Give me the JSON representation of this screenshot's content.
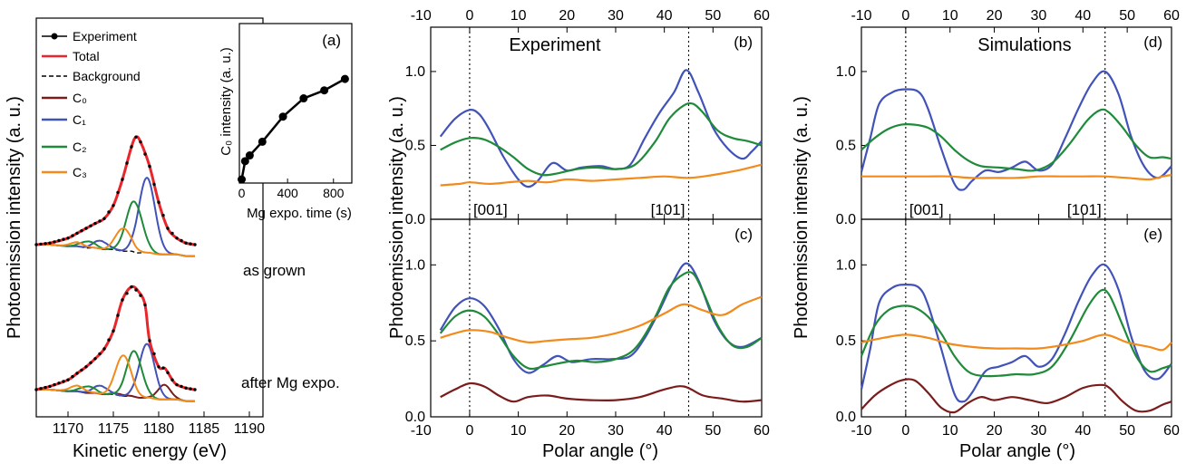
{
  "colors": {
    "experiment": "#000000",
    "total": "#e8262b",
    "background": "#000000",
    "C0": "#7b1c1c",
    "C1": "#4152b8",
    "C2": "#1f8a3a",
    "C3": "#f28a1c"
  },
  "chart_data": [
    {
      "type": "line",
      "panel": "xps",
      "xlabel": "Kinetic energy (eV)",
      "ylabel": "Photoemission intensity (a. u.)",
      "xlim": [
        1166.5,
        1191.5
      ],
      "x_ticks": [
        "1170",
        "1175",
        "1180",
        "1185",
        "1190"
      ],
      "legend": {
        "position": "top-left",
        "entries": [
          "Experiment",
          "Total",
          "Background",
          "C₀",
          "C₁",
          "C₂",
          "C₃"
        ]
      },
      "annotations": [
        "as grown",
        "after Mg expo."
      ],
      "spectra": [
        {
          "name": "as grown",
          "x": [
            1166.5,
            1168,
            1170,
            1171,
            1172,
            1173,
            1174,
            1175,
            1176,
            1177,
            1177.5,
            1178,
            1179,
            1180,
            1181,
            1182,
            1183,
            1184
          ],
          "experiment": [
            0.0,
            0.01,
            0.04,
            0.07,
            0.1,
            0.13,
            0.16,
            0.24,
            0.4,
            0.6,
            0.66,
            0.63,
            0.48,
            0.26,
            0.1,
            0.04,
            0.01,
            0.0
          ],
          "background": [
            0.0,
            0.0,
            -0.01,
            -0.01,
            -0.02,
            -0.02,
            -0.03,
            -0.03,
            -0.04,
            -0.04,
            -0.05,
            -0.05,
            -0.05,
            -0.06,
            -0.06,
            -0.06,
            -0.07,
            -0.07
          ],
          "components": [
            {
              "name": "C1",
              "center": 1178.7,
              "width": 0.9,
              "height": 0.46,
              "satellite": {
                "center": 1173.6,
                "width": 0.8,
                "height": 0.05
              }
            },
            {
              "name": "C2",
              "center": 1177.3,
              "width": 0.9,
              "height": 0.31,
              "satellite": {
                "center": 1172.2,
                "width": 0.8,
                "height": 0.04
              }
            },
            {
              "name": "C3",
              "center": 1176.1,
              "width": 0.85,
              "height": 0.14,
              "satellite": {
                "center": 1171.0,
                "width": 0.8,
                "height": 0.025
              }
            }
          ]
        },
        {
          "name": "after Mg expo.",
          "x": [
            1166.5,
            1168,
            1170,
            1171,
            1172,
            1173,
            1174,
            1175,
            1176,
            1177,
            1177.8,
            1178.5,
            1179,
            1180,
            1180.7,
            1181.5,
            1182,
            1183,
            1184
          ],
          "experiment": [
            0.0,
            0.02,
            0.06,
            0.1,
            0.14,
            0.19,
            0.25,
            0.36,
            0.55,
            0.63,
            0.6,
            0.52,
            0.3,
            0.14,
            0.13,
            0.06,
            0.03,
            0.01,
            0.0
          ],
          "background": [
            0.0,
            0.0,
            -0.01,
            -0.01,
            -0.02,
            -0.02,
            -0.03,
            -0.03,
            -0.04,
            -0.04,
            -0.05,
            -0.05,
            -0.05,
            -0.06,
            -0.06,
            -0.06,
            -0.06,
            -0.07,
            -0.07
          ],
          "components": [
            {
              "name": "C0",
              "center": 1180.6,
              "width": 0.7,
              "height": 0.09,
              "satellite": {
                "center": 1175.5,
                "width": 0.8,
                "height": 0.01
              }
            },
            {
              "name": "C1",
              "center": 1178.7,
              "width": 0.85,
              "height": 0.33,
              "satellite": {
                "center": 1173.6,
                "width": 0.8,
                "height": 0.05
              }
            },
            {
              "name": "C2",
              "center": 1177.3,
              "width": 0.85,
              "height": 0.28,
              "satellite": {
                "center": 1172.2,
                "width": 0.8,
                "height": 0.04
              }
            },
            {
              "name": "C3",
              "center": 1176.1,
              "width": 0.85,
              "height": 0.25,
              "satellite": {
                "center": 1171.0,
                "width": 0.8,
                "height": 0.035
              }
            }
          ]
        }
      ]
    },
    {
      "type": "line",
      "panel": "(a)",
      "xlabel": "Mg expo. time (s)",
      "ylabel": "C₀ intensity (a. u.)",
      "xlim": [
        -20,
        960
      ],
      "x_ticks": [
        "0",
        "400",
        "800"
      ],
      "x": [
        0,
        30,
        70,
        180,
        360,
        540,
        720,
        900
      ],
      "y": [
        0.0,
        0.16,
        0.21,
        0.33,
        0.55,
        0.71,
        0.78,
        0.88
      ]
    },
    {
      "type": "line",
      "panel": "(b)",
      "title": "Experiment",
      "xlim": [
        -8,
        60
      ],
      "ylim": [
        0,
        1.3
      ],
      "ylabel": "Photoemission intensity (a. u.)",
      "top_ticks": [
        "-10",
        "0",
        "10",
        "20",
        "30",
        "40",
        "50",
        "60"
      ],
      "y_ticks": [
        "0.0",
        "0.5",
        "1.0"
      ],
      "annotations": [
        "[001]",
        "[101]"
      ],
      "vlines": [
        0,
        45
      ],
      "series": [
        {
          "name": "C1",
          "x": [
            -6,
            -3,
            0,
            2,
            4,
            7,
            10,
            12,
            14,
            17,
            20,
            23,
            27,
            30,
            33,
            36,
            39,
            42,
            44.5,
            47,
            50,
            53,
            56,
            58,
            60
          ],
          "y": [
            0.56,
            0.68,
            0.74,
            0.71,
            0.61,
            0.42,
            0.27,
            0.22,
            0.26,
            0.38,
            0.33,
            0.35,
            0.36,
            0.34,
            0.37,
            0.55,
            0.72,
            0.86,
            1.01,
            0.86,
            0.62,
            0.48,
            0.41,
            0.46,
            0.53
          ]
        },
        {
          "name": "C2",
          "x": [
            -6,
            -3,
            0,
            3,
            6,
            9,
            12,
            15,
            18,
            22,
            26,
            30,
            34,
            38,
            41,
            44,
            46,
            48,
            51,
            54,
            57,
            60
          ],
          "y": [
            0.47,
            0.52,
            0.55,
            0.54,
            0.49,
            0.42,
            0.34,
            0.3,
            0.31,
            0.34,
            0.35,
            0.34,
            0.37,
            0.52,
            0.68,
            0.77,
            0.78,
            0.72,
            0.6,
            0.55,
            0.53,
            0.5
          ]
        },
        {
          "name": "C3",
          "x": [
            -6,
            -2,
            0,
            4,
            8,
            12,
            16,
            20,
            25,
            30,
            35,
            40,
            45,
            50,
            55,
            60
          ],
          "y": [
            0.23,
            0.24,
            0.25,
            0.24,
            0.25,
            0.26,
            0.25,
            0.27,
            0.26,
            0.27,
            0.28,
            0.29,
            0.28,
            0.3,
            0.33,
            0.37
          ]
        }
      ]
    },
    {
      "type": "line",
      "panel": "(c)",
      "xlim": [
        -8,
        60
      ],
      "ylim": [
        0,
        1.3
      ],
      "xlabel": "Polar angle (°)",
      "x_ticks": [
        "-10",
        "0",
        "10",
        "20",
        "30",
        "40",
        "50",
        "60"
      ],
      "y_ticks": [
        "0.0",
        "0.5",
        "1.0"
      ],
      "vlines": [
        0,
        45
      ],
      "series": [
        {
          "name": "C1",
          "x": [
            -6,
            -3,
            0,
            3,
            6,
            9,
            12,
            15,
            18,
            21,
            25,
            29,
            33,
            36,
            39,
            42,
            44.5,
            47,
            50,
            53,
            56,
            60
          ],
          "y": [
            0.57,
            0.72,
            0.78,
            0.73,
            0.58,
            0.38,
            0.29,
            0.34,
            0.4,
            0.36,
            0.38,
            0.38,
            0.4,
            0.52,
            0.7,
            0.9,
            1.01,
            0.9,
            0.65,
            0.5,
            0.46,
            0.52
          ]
        },
        {
          "name": "C2",
          "x": [
            -6,
            -3,
            0,
            3,
            6,
            9,
            12,
            15,
            18,
            22,
            26,
            30,
            34,
            38,
            41,
            44,
            46,
            48,
            51,
            54,
            57,
            60
          ],
          "y": [
            0.55,
            0.66,
            0.7,
            0.66,
            0.54,
            0.4,
            0.32,
            0.33,
            0.35,
            0.37,
            0.36,
            0.38,
            0.45,
            0.65,
            0.85,
            0.94,
            0.94,
            0.82,
            0.6,
            0.47,
            0.46,
            0.52
          ]
        },
        {
          "name": "C3",
          "x": [
            -6,
            -3,
            0,
            4,
            8,
            12,
            16,
            20,
            25,
            30,
            35,
            40,
            44,
            48,
            52,
            56,
            60
          ],
          "y": [
            0.52,
            0.55,
            0.57,
            0.56,
            0.52,
            0.49,
            0.5,
            0.51,
            0.52,
            0.55,
            0.6,
            0.68,
            0.74,
            0.7,
            0.67,
            0.74,
            0.79
          ]
        },
        {
          "name": "C0",
          "x": [
            -6,
            -3,
            0,
            3,
            6,
            9,
            12,
            16,
            20,
            25,
            30,
            35,
            40,
            44,
            48,
            52,
            56,
            60
          ],
          "y": [
            0.13,
            0.18,
            0.22,
            0.2,
            0.14,
            0.1,
            0.13,
            0.14,
            0.12,
            0.11,
            0.11,
            0.13,
            0.18,
            0.2,
            0.14,
            0.12,
            0.1,
            0.11
          ]
        }
      ]
    },
    {
      "type": "line",
      "panel": "(d)",
      "title": "Simulations",
      "xlim": [
        -10,
        60
      ],
      "ylim": [
        0,
        1.3
      ],
      "ylabel": "Photoemission intensity (a. u.)",
      "top_ticks": [
        "-10",
        "0",
        "10",
        "20",
        "30",
        "40",
        "50",
        "60"
      ],
      "y_ticks": [
        "0.0",
        "0.5",
        "1.0"
      ],
      "annotations": [
        "[001]",
        "[101]"
      ],
      "vlines": [
        0,
        45
      ],
      "series": [
        {
          "name": "C1",
          "x": [
            -10,
            -8,
            -6,
            -3,
            0,
            3,
            5,
            8,
            11,
            13,
            15,
            18,
            21,
            24,
            27,
            30,
            33,
            36,
            39,
            42,
            45,
            48,
            51,
            54,
            57,
            60
          ],
          "y": [
            0.32,
            0.55,
            0.78,
            0.86,
            0.88,
            0.86,
            0.75,
            0.48,
            0.24,
            0.2,
            0.26,
            0.33,
            0.32,
            0.35,
            0.39,
            0.33,
            0.37,
            0.55,
            0.75,
            0.92,
            1.0,
            0.85,
            0.55,
            0.35,
            0.28,
            0.36
          ]
        },
        {
          "name": "C2",
          "x": [
            -10,
            -7,
            -4,
            -1,
            2,
            5,
            8,
            11,
            14,
            17,
            21,
            25,
            29,
            33,
            37,
            41,
            44,
            46,
            49,
            52,
            55,
            58,
            60
          ],
          "y": [
            0.47,
            0.55,
            0.61,
            0.64,
            0.64,
            0.62,
            0.56,
            0.47,
            0.4,
            0.36,
            0.35,
            0.34,
            0.33,
            0.38,
            0.51,
            0.67,
            0.74,
            0.72,
            0.62,
            0.5,
            0.42,
            0.42,
            0.41
          ]
        },
        {
          "name": "C3",
          "x": [
            -10,
            -5,
            0,
            5,
            10,
            15,
            20,
            25,
            30,
            35,
            40,
            45,
            50,
            55,
            58,
            60
          ],
          "y": [
            0.29,
            0.29,
            0.29,
            0.29,
            0.29,
            0.28,
            0.28,
            0.28,
            0.29,
            0.29,
            0.29,
            0.29,
            0.28,
            0.27,
            0.29,
            0.3
          ]
        }
      ]
    },
    {
      "type": "line",
      "panel": "(e)",
      "xlim": [
        -10,
        60
      ],
      "ylim": [
        0,
        1.3
      ],
      "xlabel": "Polar angle (°)",
      "x_ticks": [
        "-10",
        "0",
        "10",
        "20",
        "30",
        "40",
        "50",
        "60"
      ],
      "y_ticks": [
        "0.0",
        "0.5",
        "1.0"
      ],
      "vlines": [
        0,
        45
      ],
      "series": [
        {
          "name": "C1",
          "x": [
            -10,
            -8,
            -6,
            -3,
            0,
            3,
            5,
            8,
            11,
            13,
            15,
            18,
            21,
            24,
            27,
            30,
            33,
            36,
            39,
            42,
            45,
            48,
            51,
            54,
            57,
            60
          ],
          "y": [
            0.18,
            0.45,
            0.75,
            0.85,
            0.87,
            0.85,
            0.74,
            0.45,
            0.15,
            0.1,
            0.16,
            0.3,
            0.33,
            0.36,
            0.4,
            0.33,
            0.38,
            0.55,
            0.76,
            0.93,
            1.0,
            0.84,
            0.52,
            0.3,
            0.25,
            0.35
          ]
        },
        {
          "name": "C2",
          "x": [
            -10,
            -7,
            -4,
            -1,
            2,
            5,
            8,
            11,
            14,
            17,
            21,
            25,
            29,
            33,
            37,
            41,
            44,
            46,
            49,
            52,
            55,
            58,
            60
          ],
          "y": [
            0.4,
            0.6,
            0.7,
            0.73,
            0.72,
            0.66,
            0.55,
            0.4,
            0.3,
            0.27,
            0.27,
            0.28,
            0.28,
            0.33,
            0.5,
            0.72,
            0.83,
            0.8,
            0.6,
            0.4,
            0.3,
            0.32,
            0.34
          ]
        },
        {
          "name": "C3",
          "x": [
            -10,
            -5,
            0,
            5,
            10,
            15,
            20,
            25,
            30,
            35,
            40,
            45,
            50,
            55,
            58,
            60
          ],
          "y": [
            0.49,
            0.52,
            0.54,
            0.52,
            0.48,
            0.46,
            0.45,
            0.45,
            0.45,
            0.47,
            0.5,
            0.54,
            0.49,
            0.46,
            0.44,
            0.49
          ]
        },
        {
          "name": "C0",
          "x": [
            -10,
            -7,
            -4,
            -1,
            2,
            5,
            8,
            11,
            14,
            17,
            20,
            24,
            28,
            32,
            36,
            40,
            44,
            46,
            49,
            52,
            55,
            58,
            60
          ],
          "y": [
            0.05,
            0.14,
            0.2,
            0.24,
            0.24,
            0.16,
            0.06,
            0.03,
            0.09,
            0.13,
            0.11,
            0.13,
            0.11,
            0.09,
            0.13,
            0.19,
            0.21,
            0.19,
            0.1,
            0.04,
            0.04,
            0.08,
            0.1
          ]
        }
      ]
    }
  ]
}
